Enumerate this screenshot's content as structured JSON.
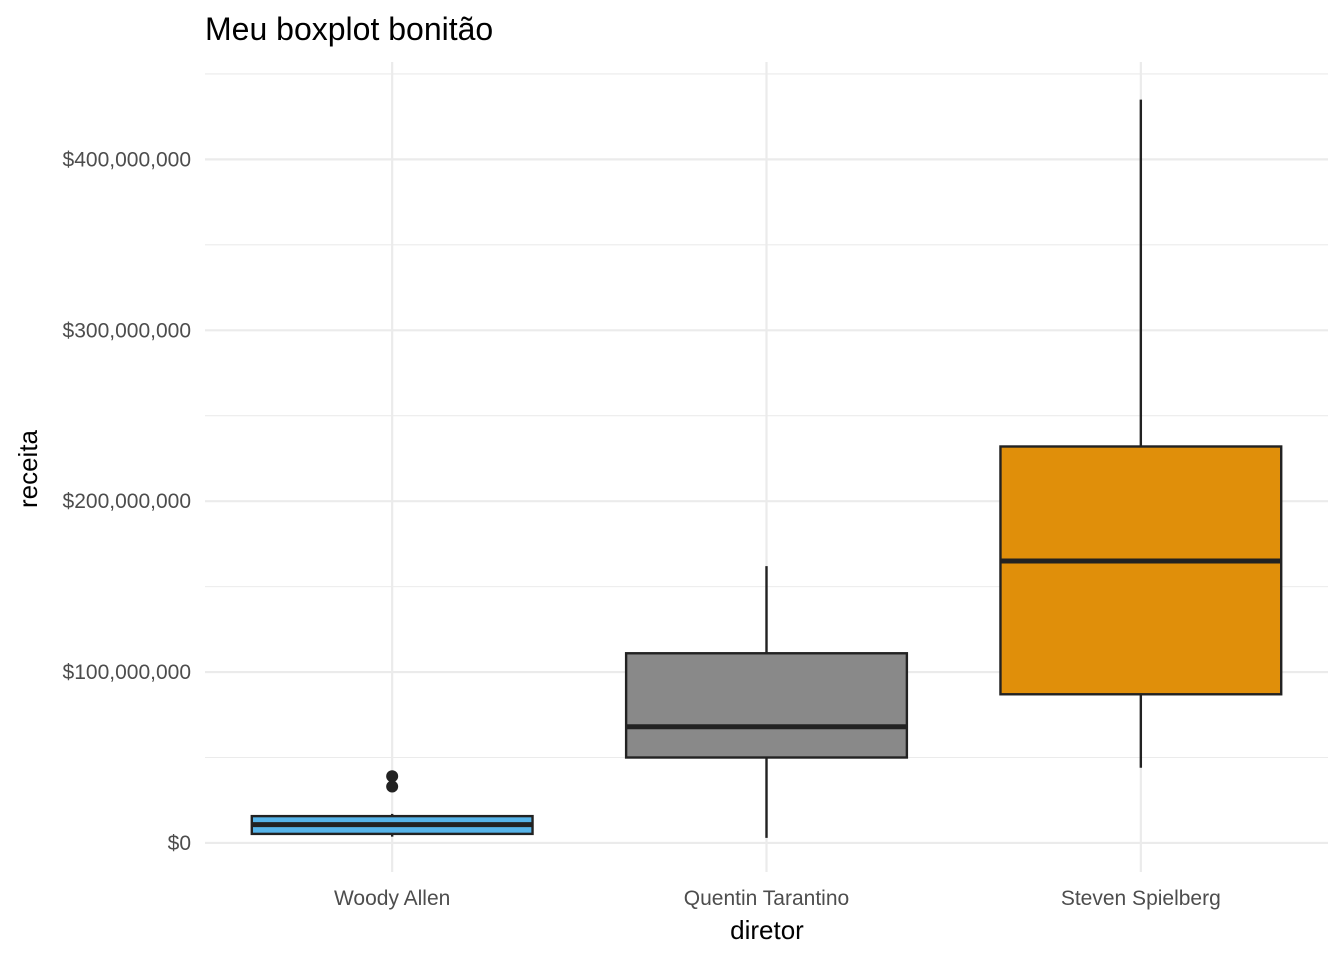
{
  "chart_data": {
    "type": "boxplot",
    "title": "Meu boxplot bonitão",
    "xlabel": "diretor",
    "ylabel": "receita",
    "categories": [
      "Woody Allen",
      "Quentin Tarantino",
      "Steven Spielberg"
    ],
    "yticks": [
      0,
      100000000,
      200000000,
      300000000,
      400000000
    ],
    "ytick_labels": [
      "$0",
      "$100,000,000",
      "$200,000,000",
      "$300,000,000",
      "$400,000,000"
    ],
    "ylim": [
      -17000000,
      457000000
    ],
    "grid": true,
    "boxes": [
      {
        "category": "Woody Allen",
        "whisker_low": 3700000,
        "q1": 5300000,
        "median": 10700000,
        "q3": 15700000,
        "whisker_high": 17000000,
        "outliers": [
          33000000,
          39000000
        ],
        "fill": "#56B4E9"
      },
      {
        "category": "Quentin Tarantino",
        "whisker_low": 3000000,
        "q1": 50000000,
        "median": 68000000,
        "q3": 111000000,
        "whisker_high": 162000000,
        "outliers": [],
        "fill": "#898989"
      },
      {
        "category": "Steven Spielberg",
        "whisker_low": 44000000,
        "q1": 87000000,
        "median": 165000000,
        "q3": 232000000,
        "whisker_high": 435000000,
        "outliers": [],
        "fill": "#E08F0A"
      }
    ]
  }
}
